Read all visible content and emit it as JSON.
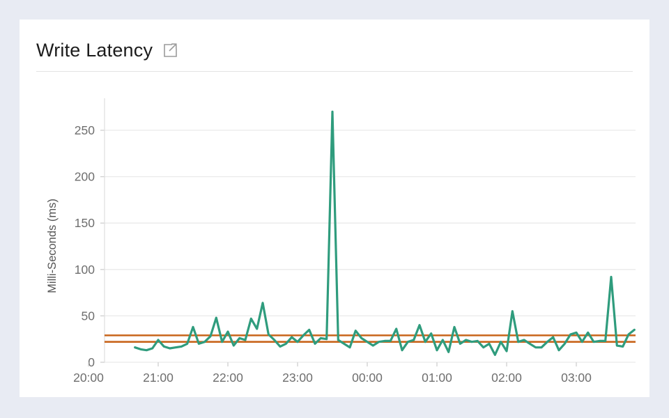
{
  "page": {
    "background_color": "#e8ebf3"
  },
  "card": {
    "title": "Write Latency",
    "icons": {
      "external_link": "external-link-icon"
    }
  },
  "chart_data": {
    "type": "line",
    "title": "Write Latency",
    "xlabel": "",
    "ylabel": "Milli-Seconds (ms)",
    "ylim": [
      0,
      283
    ],
    "yticks": [
      0,
      50,
      100,
      150,
      200,
      250
    ],
    "xticks": [
      "20:00",
      "21:00",
      "22:00",
      "23:00",
      "00:00",
      "01:00",
      "02:00",
      "03:00"
    ],
    "grid": "horizontal-only",
    "legend_position": "none",
    "line_color": "#2f9c7d",
    "reference_line_color": "#c8641a",
    "reference_lines": [
      {
        "name": "upper-threshold",
        "value": 29,
        "color": "#c8641a"
      },
      {
        "name": "lower-threshold",
        "value": 22,
        "color": "#c8641a"
      }
    ],
    "series": [
      {
        "name": "write-latency-ms",
        "color": "#2f9c7d",
        "x": [
          "20:40",
          "20:45",
          "20:50",
          "20:55",
          "21:00",
          "21:05",
          "21:10",
          "21:15",
          "21:20",
          "21:25",
          "21:30",
          "21:35",
          "21:40",
          "21:45",
          "21:50",
          "21:55",
          "22:00",
          "22:05",
          "22:10",
          "22:15",
          "22:20",
          "22:25",
          "22:30",
          "22:35",
          "22:40",
          "22:45",
          "22:50",
          "22:55",
          "23:00",
          "23:05",
          "23:10",
          "23:15",
          "23:20",
          "23:25",
          "23:30",
          "23:35",
          "23:40",
          "23:45",
          "23:50",
          "23:55",
          "00:00",
          "00:05",
          "00:10",
          "00:15",
          "00:20",
          "00:25",
          "00:30",
          "00:35",
          "00:40",
          "00:45",
          "00:50",
          "00:55",
          "01:00",
          "01:05",
          "01:10",
          "01:15",
          "01:20",
          "01:25",
          "01:30",
          "01:35",
          "01:40",
          "01:45",
          "01:50",
          "01:55",
          "02:00",
          "02:05",
          "02:10",
          "02:15",
          "02:20",
          "02:25",
          "02:30",
          "02:35",
          "02:40",
          "02:45",
          "02:50",
          "02:55",
          "03:00",
          "03:05",
          "03:10",
          "03:15",
          "03:20",
          "03:25",
          "03:30",
          "03:35",
          "03:40",
          "03:45",
          "03:50"
        ],
        "values": [
          16,
          14,
          13,
          15,
          24,
          17,
          15,
          16,
          17,
          20,
          38,
          20,
          22,
          28,
          48,
          22,
          33,
          18,
          26,
          24,
          47,
          36,
          64,
          30,
          24,
          17,
          20,
          27,
          22,
          29,
          35,
          20,
          26,
          25,
          270,
          24,
          20,
          16,
          34,
          26,
          22,
          18,
          22,
          23,
          23,
          36,
          13,
          22,
          24,
          40,
          22,
          31,
          13,
          24,
          11,
          38,
          20,
          24,
          22,
          23,
          16,
          20,
          8,
          22,
          12,
          55,
          22,
          24,
          20,
          16,
          16,
          22,
          27,
          13,
          20,
          30,
          32,
          22,
          32,
          22,
          23,
          23,
          92,
          18,
          17,
          30,
          35
        ]
      }
    ]
  }
}
